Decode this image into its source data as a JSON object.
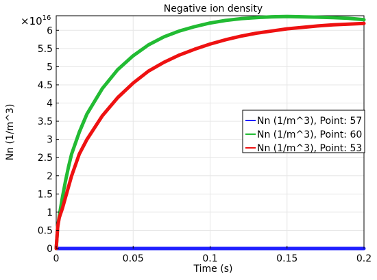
{
  "chart_data": {
    "type": "line",
    "title": "Negative ion density",
    "xlabel": "Time (s)",
    "ylabel": "Nn (1/m^3)",
    "y_multiplier_label": "×10",
    "y_multiplier_exponent": "16",
    "xlim": [
      0,
      0.2
    ],
    "ylim": [
      0,
      6.4
    ],
    "x_ticks": [
      0,
      0.05,
      0.1,
      0.15,
      0.2
    ],
    "x_tick_labels": [
      "0",
      "0.05",
      "0.1",
      "0.15",
      "0.2"
    ],
    "y_ticks": [
      0,
      0.5,
      1,
      1.5,
      2,
      2.5,
      3,
      3.5,
      4,
      4.5,
      5,
      5.5,
      6
    ],
    "y_tick_labels": [
      "0",
      "0.5",
      "1",
      "1.5",
      "2",
      "2.5",
      "3",
      "3.5",
      "4",
      "4.5",
      "5",
      "5.5",
      "6"
    ],
    "grid": true,
    "legend_position": "right",
    "series": [
      {
        "name": "Nn (1/m^3), Point: 57",
        "color": "#1f1fff",
        "x": [
          0,
          0.025,
          0.05,
          0.075,
          0.1,
          0.125,
          0.15,
          0.175,
          0.2
        ],
        "y": [
          0,
          0,
          0,
          0,
          0,
          0,
          0,
          0,
          0
        ]
      },
      {
        "name": "Nn (1/m^3), Point: 60",
        "color": "#22bb33",
        "x": [
          0,
          0.001,
          0.002,
          0.004,
          0.006,
          0.008,
          0.01,
          0.015,
          0.02,
          0.03,
          0.04,
          0.05,
          0.06,
          0.07,
          0.08,
          0.09,
          0.1,
          0.11,
          0.12,
          0.13,
          0.14,
          0.15,
          0.16,
          0.17,
          0.18,
          0.19,
          0.2
        ],
        "y": [
          0,
          0.6,
          0.9,
          1.4,
          1.85,
          2.25,
          2.6,
          3.2,
          3.7,
          4.4,
          4.92,
          5.3,
          5.6,
          5.82,
          5.98,
          6.1,
          6.2,
          6.27,
          6.32,
          6.35,
          6.37,
          6.38,
          6.37,
          6.36,
          6.35,
          6.33,
          6.29
        ]
      },
      {
        "name": "Nn (1/m^3), Point: 53",
        "color": "#ee1111",
        "x": [
          0,
          0.001,
          0.002,
          0.004,
          0.006,
          0.008,
          0.01,
          0.015,
          0.02,
          0.03,
          0.04,
          0.05,
          0.06,
          0.07,
          0.08,
          0.09,
          0.1,
          0.11,
          0.12,
          0.13,
          0.14,
          0.15,
          0.16,
          0.17,
          0.18,
          0.19,
          0.2
        ],
        "y": [
          0,
          0.6,
          0.85,
          1.1,
          1.4,
          1.7,
          2.0,
          2.6,
          3.0,
          3.65,
          4.15,
          4.55,
          4.88,
          5.12,
          5.32,
          5.48,
          5.62,
          5.74,
          5.84,
          5.92,
          5.98,
          6.04,
          6.08,
          6.12,
          6.15,
          6.17,
          6.19
        ]
      }
    ]
  }
}
